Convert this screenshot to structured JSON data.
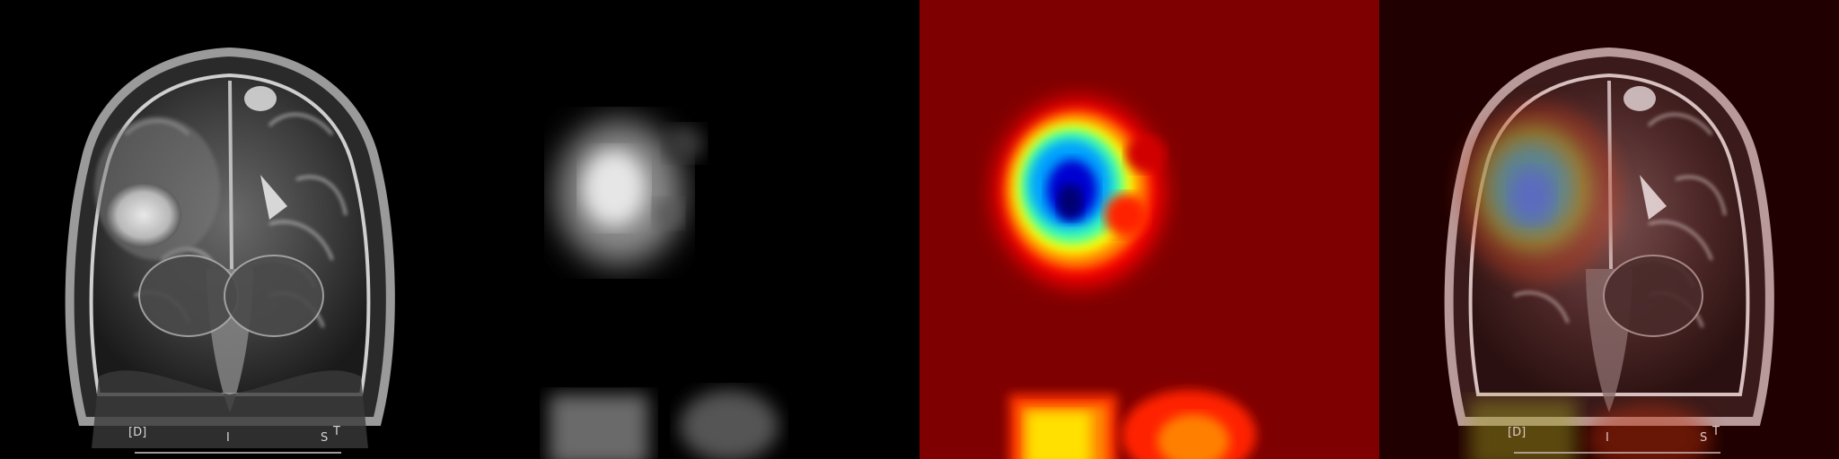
{
  "panels": [
    {
      "id": "mri",
      "labels": {
        "left": "[D]",
        "mid": "I",
        "right": "S",
        "top": "T"
      }
    },
    {
      "id": "saliency-grayscale"
    },
    {
      "id": "saliency-heatmap"
    },
    {
      "id": "overlay",
      "labels": {
        "left": "[D]",
        "mid": "I",
        "right": "S",
        "top": "T"
      }
    }
  ],
  "colors": {
    "background": "#000000",
    "heatmap_base": "#7f0000",
    "heatmap_hot": "#0000a0"
  }
}
